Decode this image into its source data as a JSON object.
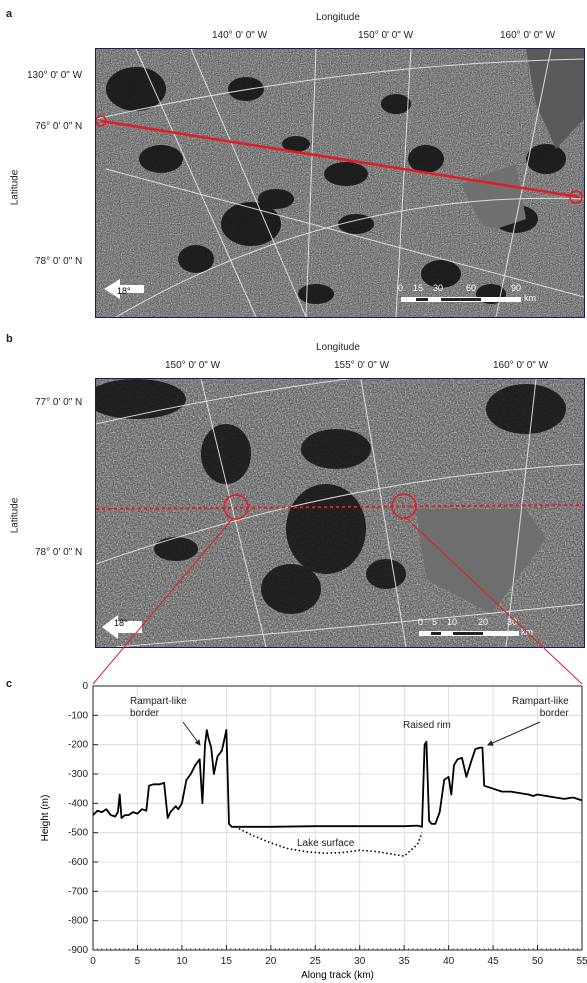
{
  "panel_a": {
    "letter": "a",
    "x_title": "Longitude",
    "y_title": "Latitude",
    "lon_labels": [
      "140° 0' 0\" W",
      "150° 0' 0\" W",
      "160° 0' 0\" W"
    ],
    "lat_labels": [
      "130° 0' 0\" W",
      "76° 0' 0\" N",
      "78° 0' 0\" N"
    ],
    "incidence": "18°",
    "scale_ticks": [
      "0",
      "15",
      "30",
      "60",
      "90"
    ],
    "scale_unit": "km"
  },
  "panel_b": {
    "letter": "b",
    "x_title": "Longitude",
    "y_title": "Latitude",
    "lon_labels": [
      "150° 0' 0\" W",
      "155° 0' 0\" W",
      "160° 0' 0\" W"
    ],
    "lat_labels": [
      "77° 0' 0\" N",
      "78° 0' 0\" N"
    ],
    "incidence": "18°",
    "scale_ticks": [
      "0",
      "5",
      "10",
      "20",
      "30"
    ],
    "scale_unit": "km"
  },
  "panel_c": {
    "letter": "c",
    "annotations": {
      "left_rampart": "Rampart-like\nborder",
      "raised_rim": "Raised rim",
      "right_rampart": "Rampart-like\nborder",
      "lake_surface": "Lake surface"
    }
  },
  "chart_data": {
    "type": "line",
    "title": "",
    "xlabel": "Along track (km)",
    "ylabel": "Height (m)",
    "xlim": [
      0,
      55
    ],
    "ylim": [
      -900,
      0
    ],
    "xticks": [
      0,
      5,
      10,
      15,
      20,
      25,
      30,
      35,
      40,
      45,
      50,
      55
    ],
    "yticks": [
      0,
      -100,
      -200,
      -300,
      -400,
      -500,
      -600,
      -700,
      -800,
      -900
    ],
    "grid": true,
    "series": [
      {
        "style": "solid",
        "x": [
          0,
          0.5,
          1,
          1.5,
          2,
          2.5,
          2.8,
          3,
          3.2,
          3.6,
          4,
          4.5,
          5,
          5.5,
          6,
          6.3,
          6.8,
          7.5,
          8,
          8.4,
          8.7,
          9,
          9.3,
          9.6,
          10,
          10.5,
          11,
          11.5,
          12,
          12.3,
          12.6,
          12.8,
          13,
          13.3,
          13.6,
          14,
          14.5,
          15,
          15.3,
          15.6,
          16,
          17,
          20,
          25,
          30,
          35,
          36.5,
          37,
          37.3,
          37.5,
          37.8,
          38.1,
          38.5,
          39,
          39.5,
          40,
          40.3,
          40.6,
          41,
          41.5,
          42,
          42.5,
          43,
          43.5,
          43.8,
          44,
          45,
          46,
          47,
          48,
          49,
          49.5,
          50,
          51,
          52,
          53,
          54,
          55
        ],
        "y": [
          -440,
          -425,
          -430,
          -420,
          -440,
          -445,
          -430,
          -370,
          -450,
          -440,
          -440,
          -430,
          -435,
          -420,
          -425,
          -340,
          -335,
          -335,
          -330,
          -450,
          -430,
          -420,
          -410,
          -420,
          -400,
          -320,
          -300,
          -270,
          -250,
          -400,
          -200,
          -150,
          -180,
          -210,
          -300,
          -240,
          -220,
          -150,
          -470,
          -480,
          -480,
          -480,
          -480,
          -478,
          -478,
          -478,
          -476,
          -480,
          -200,
          -190,
          -460,
          -470,
          -470,
          -430,
          -320,
          -310,
          -370,
          -270,
          -250,
          -245,
          -310,
          -260,
          -215,
          -210,
          -210,
          -340,
          -350,
          -360,
          -360,
          -365,
          -370,
          -375,
          -370,
          -375,
          -380,
          -385,
          -380,
          -390
        ]
      },
      {
        "style": "dotted",
        "x": [
          16,
          18,
          20,
          22,
          24,
          26,
          28,
          30,
          32,
          34,
          35,
          36.5,
          37
        ],
        "y": [
          -480,
          -510,
          -535,
          -555,
          -565,
          -570,
          -568,
          -560,
          -565,
          -575,
          -580,
          -540,
          -500
        ]
      }
    ]
  }
}
